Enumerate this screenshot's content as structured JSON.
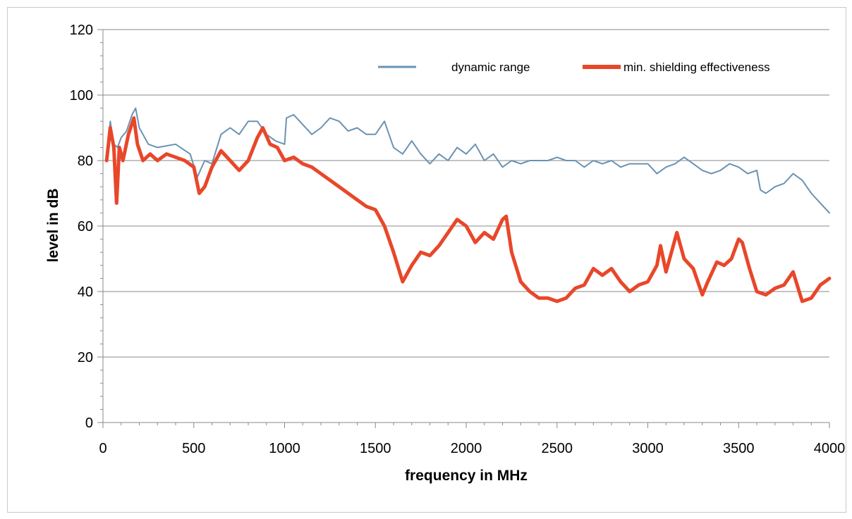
{
  "chart_data": {
    "type": "line",
    "title": "",
    "xlabel": "frequency in MHz",
    "ylabel": "level in dB",
    "xlim": [
      0,
      4000
    ],
    "ylim": [
      0,
      120
    ],
    "x_ticks": [
      0,
      500,
      1000,
      1500,
      2000,
      2500,
      3000,
      3500,
      4000
    ],
    "y_ticks": [
      0,
      20,
      40,
      60,
      80,
      100,
      120
    ],
    "grid": "horizontal",
    "legend_position": "top-right",
    "series": [
      {
        "name": "dynamic range",
        "color": "#6a92b3",
        "x": [
          20,
          40,
          60,
          80,
          100,
          130,
          160,
          180,
          200,
          250,
          300,
          400,
          480,
          520,
          560,
          600,
          650,
          700,
          750,
          800,
          850,
          900,
          950,
          1000,
          1010,
          1050,
          1100,
          1150,
          1200,
          1250,
          1300,
          1350,
          1400,
          1450,
          1500,
          1550,
          1600,
          1650,
          1700,
          1750,
          1800,
          1850,
          1900,
          1950,
          2000,
          2050,
          2100,
          2150,
          2200,
          2250,
          2300,
          2350,
          2400,
          2450,
          2500,
          2550,
          2600,
          2650,
          2700,
          2750,
          2800,
          2850,
          2900,
          2950,
          3000,
          3050,
          3100,
          3150,
          3200,
          3250,
          3300,
          3350,
          3400,
          3450,
          3500,
          3550,
          3600,
          3620,
          3650,
          3700,
          3750,
          3800,
          3850,
          3900,
          3950,
          4000
        ],
        "y": [
          80,
          92,
          85,
          84,
          87,
          89,
          94,
          96,
          90,
          85,
          84,
          85,
          82,
          75,
          80,
          79,
          88,
          90,
          88,
          92,
          92,
          88,
          86,
          85,
          93,
          94,
          91,
          88,
          90,
          93,
          92,
          89,
          90,
          88,
          88,
          92,
          84,
          82,
          86,
          82,
          79,
          82,
          80,
          84,
          82,
          85,
          80,
          82,
          78,
          80,
          79,
          80,
          80,
          80,
          81,
          80,
          80,
          78,
          80,
          79,
          80,
          78,
          79,
          79,
          79,
          76,
          78,
          79,
          81,
          79,
          77,
          76,
          77,
          79,
          78,
          76,
          77,
          71,
          70,
          72,
          73,
          76,
          74,
          70,
          67,
          64
        ]
      },
      {
        "name": "min. shielding effectiveness",
        "color": "#e8472a",
        "x": [
          20,
          40,
          60,
          75,
          90,
          110,
          140,
          170,
          190,
          220,
          260,
          300,
          350,
          400,
          450,
          500,
          530,
          560,
          600,
          650,
          700,
          750,
          800,
          850,
          880,
          920,
          960,
          1000,
          1050,
          1100,
          1150,
          1200,
          1250,
          1300,
          1350,
          1400,
          1450,
          1500,
          1550,
          1600,
          1650,
          1700,
          1750,
          1800,
          1850,
          1900,
          1950,
          2000,
          2050,
          2100,
          2150,
          2200,
          2220,
          2250,
          2300,
          2350,
          2400,
          2450,
          2500,
          2550,
          2600,
          2650,
          2700,
          2750,
          2800,
          2850,
          2900,
          2950,
          3000,
          3050,
          3070,
          3100,
          3130,
          3160,
          3200,
          3250,
          3300,
          3330,
          3380,
          3420,
          3460,
          3500,
          3520,
          3560,
          3600,
          3650,
          3700,
          3750,
          3800,
          3850,
          3900,
          3950,
          4000
        ],
        "y": [
          80,
          90,
          84,
          67,
          84,
          80,
          88,
          93,
          85,
          80,
          82,
          80,
          82,
          81,
          80,
          78,
          70,
          72,
          78,
          83,
          80,
          77,
          80,
          87,
          90,
          85,
          84,
          80,
          81,
          79,
          78,
          76,
          74,
          72,
          70,
          68,
          66,
          65,
          60,
          52,
          43,
          48,
          52,
          51,
          54,
          58,
          62,
          60,
          55,
          58,
          56,
          62,
          63,
          52,
          43,
          40,
          38,
          38,
          37,
          38,
          41,
          42,
          47,
          45,
          47,
          43,
          40,
          42,
          43,
          48,
          54,
          46,
          52,
          58,
          50,
          47,
          39,
          43,
          49,
          48,
          50,
          56,
          55,
          47,
          40,
          39,
          41,
          42,
          46,
          37,
          38,
          42,
          44
        ]
      }
    ]
  }
}
